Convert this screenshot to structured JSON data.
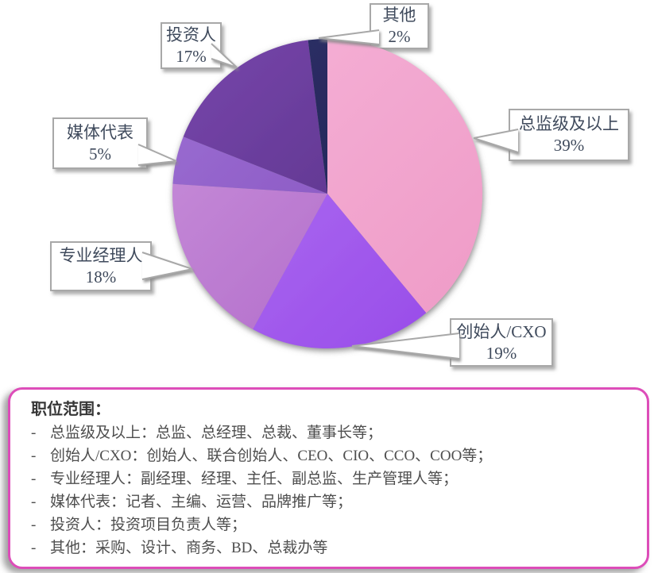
{
  "chart_data": {
    "type": "pie",
    "title": "",
    "start_angle_deg": 0,
    "direction": "clockwise",
    "legend_position": "callouts",
    "slices": [
      {
        "label": "总监级及以上",
        "value": 39,
        "pct_label": "39%",
        "color": "#F2A7CC",
        "color_light": "#F6B3D8",
        "color_dark": "#EE9AC6"
      },
      {
        "label": "创始人/CXO",
        "value": 19,
        "pct_label": "19%",
        "color": "#A55EEE",
        "color_light": "#B478F4",
        "color_dark": "#9648E8"
      },
      {
        "label": "专业经理人",
        "value": 18,
        "pct_label": "18%",
        "color": "#BB7AD1",
        "color_light": "#CA92DB",
        "color_dark": "#AC63C6"
      },
      {
        "label": "媒体代表",
        "value": 5,
        "pct_label": "5%",
        "color": "#8E5DC6",
        "color_light": "#9D6FD4",
        "color_dark": "#7F4BB8"
      },
      {
        "label": "投资人",
        "value": 17,
        "pct_label": "17%",
        "color": "#643995",
        "color_light": "#7847AC",
        "color_dark": "#4F2B7D"
      },
      {
        "label": "其他",
        "value": 2,
        "pct_label": "2%",
        "color": "#26295C",
        "color_light": "#2F3169",
        "color_dark": "#1D2050"
      }
    ]
  },
  "legend_box": {
    "title": "职位范围：",
    "bullet": "-",
    "lines": [
      "总监级及以上：总监、总经理、总裁、董事长等；",
      "创始人/CXO：创始人、联合创始人、CEO、CIO、CCO、COO等；",
      "专业经理人：副经理、经理、主任、副总监、生产管理人等；",
      "媒体代表：记者、主编、运营、品牌推广等；",
      "投资人：投资项目负责人等；",
      "其他：采购、设计、商务、BD、总裁办等"
    ],
    "border_color": "#DD4DB9"
  },
  "colors": {
    "background": "#FFFFFF",
    "callout_border": "#A8A8A8",
    "callout_text": "#3F4A5C",
    "legend_title_text": "#363636",
    "legend_body_text": "#4E4E4E"
  }
}
